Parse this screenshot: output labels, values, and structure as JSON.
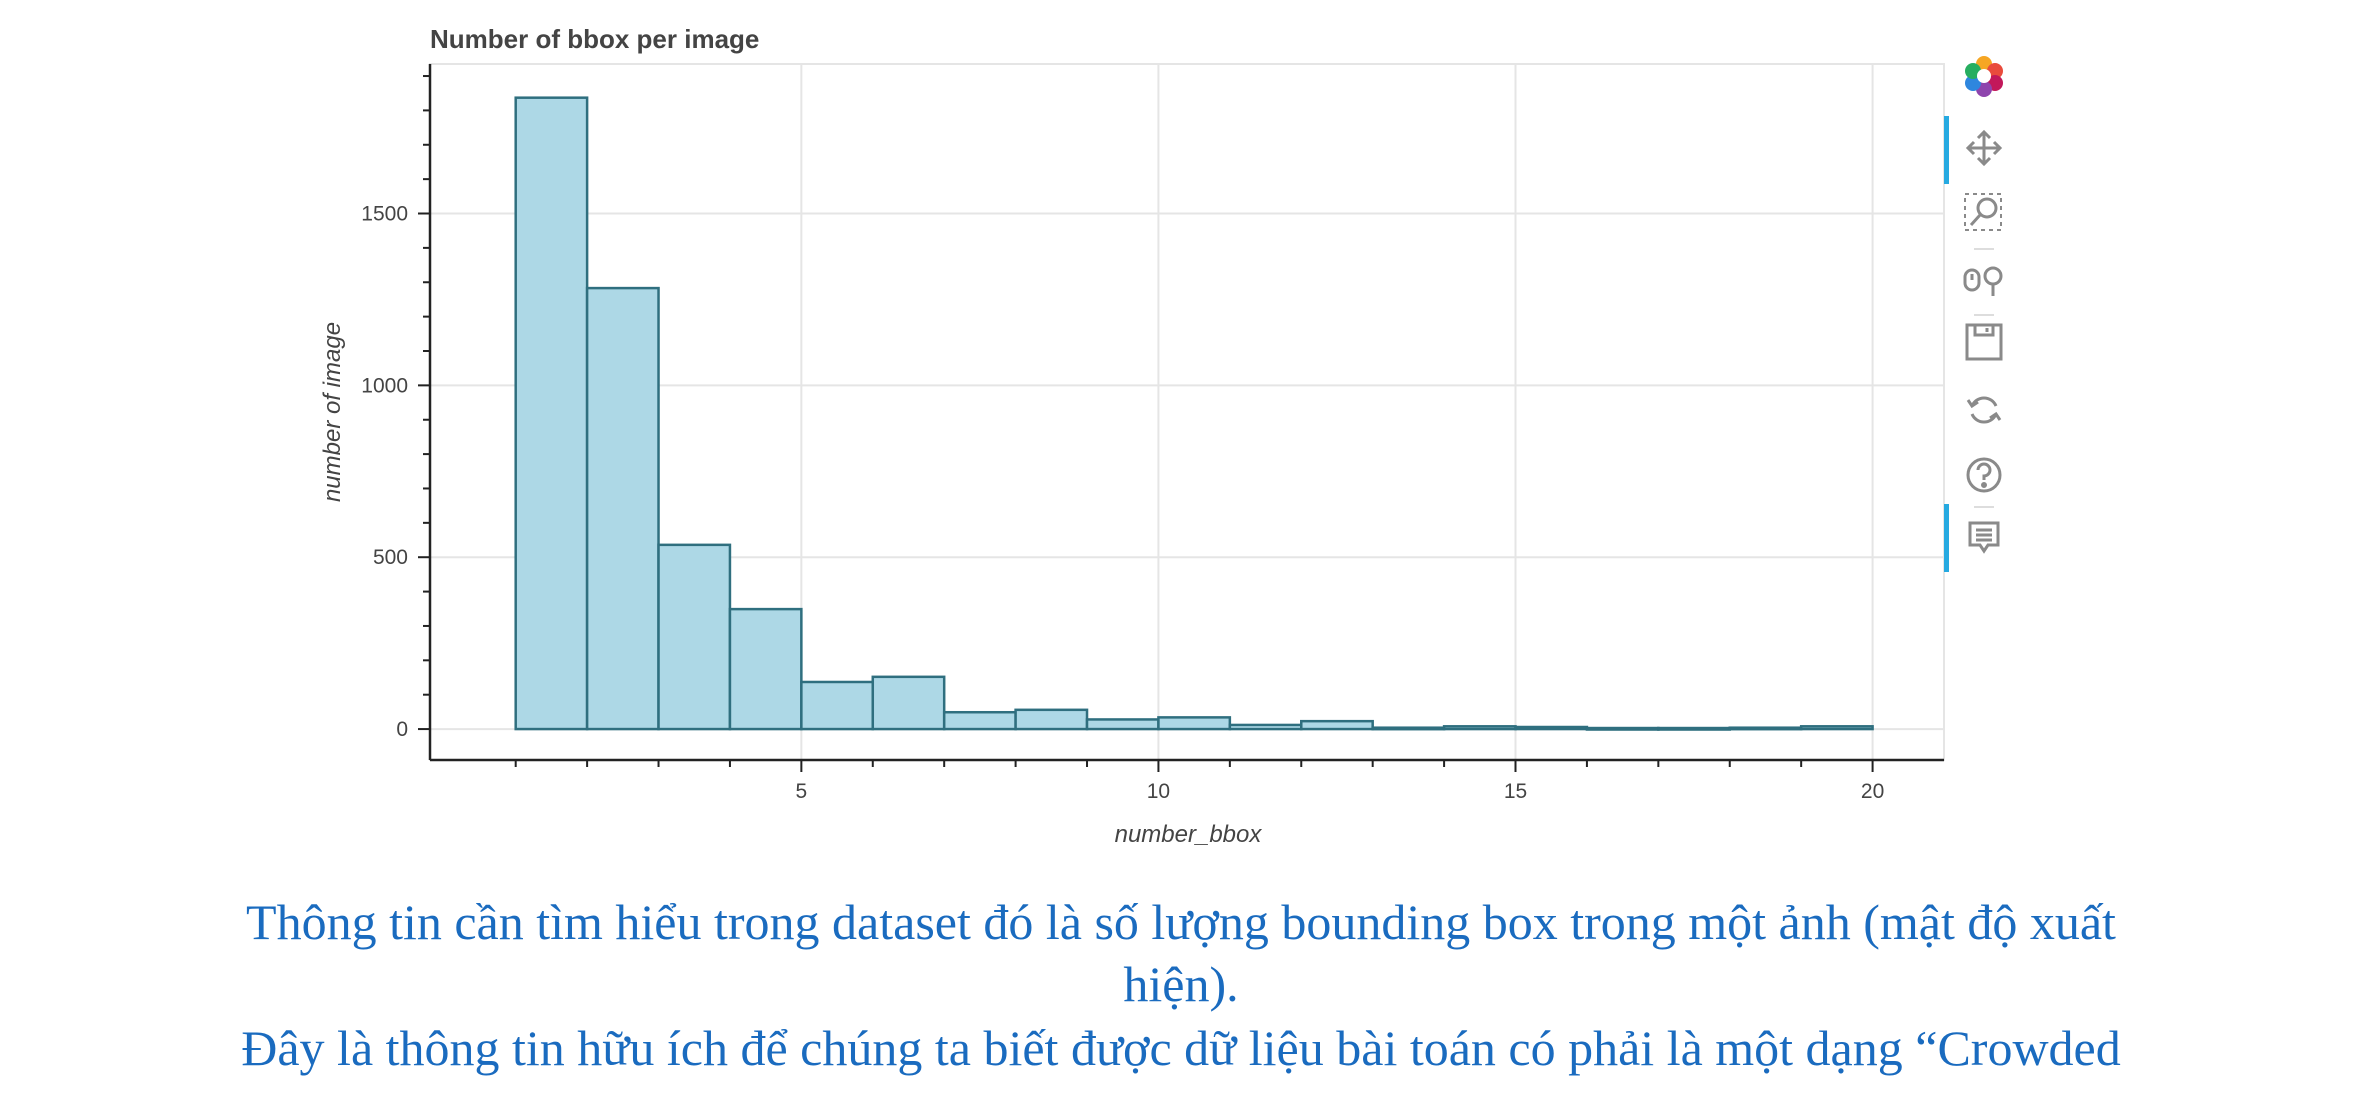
{
  "header_fragment": "",
  "chart_data": {
    "type": "bar",
    "title": "Number of bbox per image",
    "xlabel": "number_bbox",
    "ylabel": "number of image",
    "bins": [
      [
        1,
        2
      ],
      [
        2,
        3
      ],
      [
        3,
        4
      ],
      [
        4,
        5
      ],
      [
        5,
        6
      ],
      [
        6,
        7
      ],
      [
        7,
        8
      ],
      [
        8,
        9
      ],
      [
        9,
        10
      ],
      [
        10,
        11
      ],
      [
        11,
        12
      ],
      [
        12,
        13
      ],
      [
        13,
        14
      ],
      [
        14,
        15
      ],
      [
        15,
        16
      ],
      [
        16,
        17
      ],
      [
        17,
        18
      ],
      [
        18,
        19
      ],
      [
        19,
        20
      ]
    ],
    "values": [
      1837,
      1283,
      536,
      349,
      137,
      152,
      49,
      56,
      28,
      34,
      12,
      23,
      4,
      8,
      6,
      3,
      3,
      4,
      8
    ],
    "xlim": [
      -0.2,
      21.0
    ],
    "ylim": [
      -90,
      1935
    ],
    "xticks": [
      "5",
      "10",
      "15",
      "20"
    ],
    "yticks": [
      "0",
      "500",
      "1000",
      "1500"
    ],
    "grid": true,
    "bar_color": "#add8e6",
    "bar_edge_color": "#2f6f7f"
  },
  "toolbar": {
    "tools": [
      "bokeh-logo-icon",
      "pan-icon",
      "box-zoom-icon",
      "wheel-zoom-icon",
      "save-icon",
      "reset-icon",
      "help-icon",
      "hover-icon"
    ]
  },
  "caption": {
    "line1": "Thông tin cần tìm hiểu trong dataset đó là số lượng bounding box trong một ảnh (mật độ xuất",
    "line2": "hiện).",
    "line3": "Đây là thông tin hữu ích để chúng ta biết được dữ liệu bài toán có phải là một dạng “Crowded"
  },
  "colors": {
    "caption": "#1a6bbf",
    "accent": "#26aae1"
  }
}
